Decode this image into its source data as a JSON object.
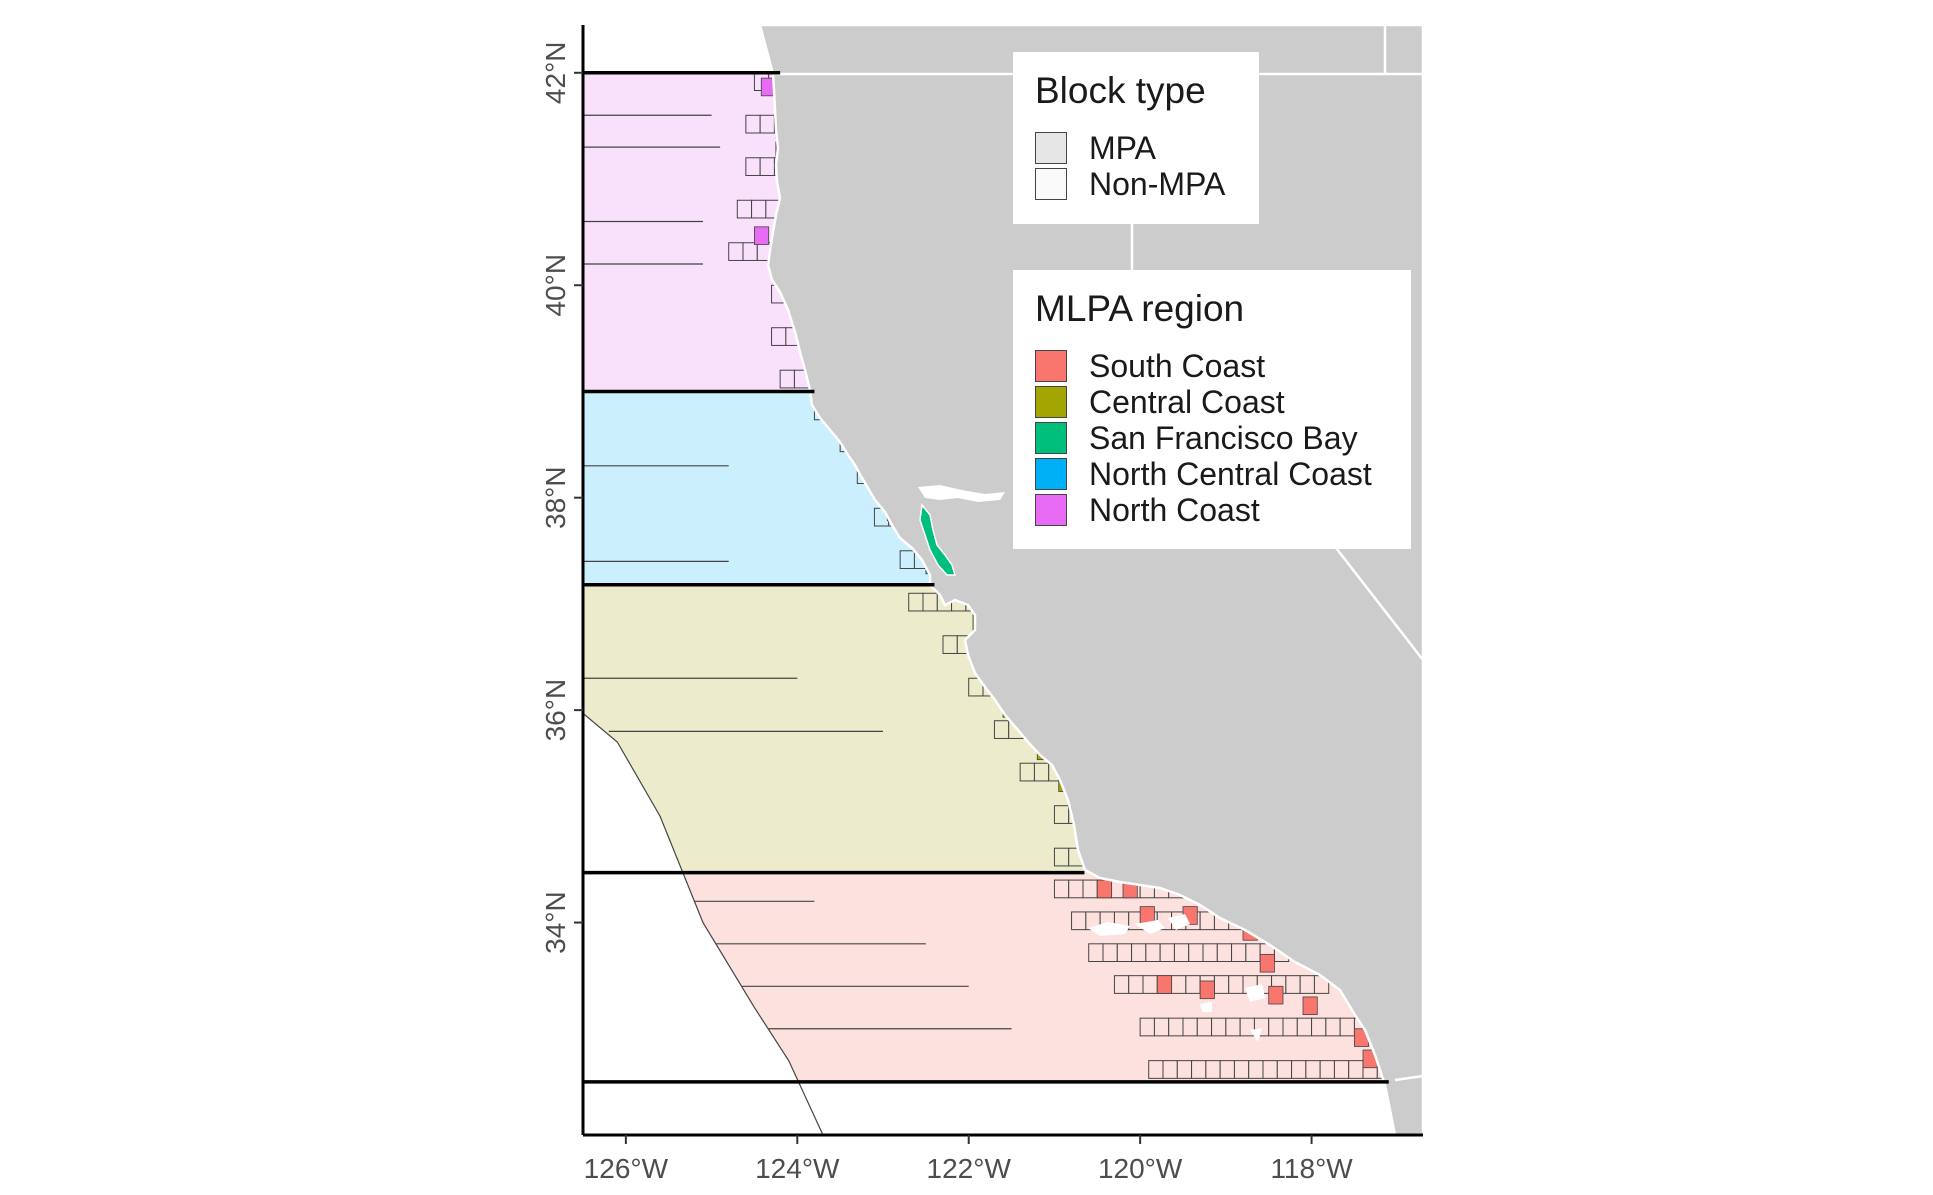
{
  "map": {
    "lon_range": [
      -126.5,
      -116.7
    ],
    "lat_range": [
      32.0,
      42.45
    ],
    "x_ticks": [
      {
        "lon": -126,
        "label": "126°W"
      },
      {
        "lon": -124,
        "label": "124°W"
      },
      {
        "lon": -122,
        "label": "122°W"
      },
      {
        "lon": -120,
        "label": "120°W"
      },
      {
        "lon": -118,
        "label": "118°W"
      }
    ],
    "y_ticks": [
      {
        "lat": 34,
        "label": "34°N"
      },
      {
        "lat": 36,
        "label": "36°N"
      },
      {
        "lat": 38,
        "label": "38°N"
      },
      {
        "lat": 40,
        "label": "40°N"
      },
      {
        "lat": 42,
        "label": "42°N"
      }
    ],
    "region_boundaries_lat": [
      42.0,
      39.0,
      37.18,
      34.47,
      32.5
    ],
    "colors": {
      "land": "#cccccc",
      "land_border": "#ffffff",
      "block_outline": "#444444",
      "region_boundary": "#000000"
    }
  },
  "regions": [
    {
      "name": "South Coast",
      "color": "#F8766D",
      "light": "#FDE1DF",
      "lat_range": [
        32.5,
        34.47
      ]
    },
    {
      "name": "Central Coast",
      "color": "#A3A500",
      "light": "#ECECCC",
      "lat_range": [
        34.47,
        37.18
      ]
    },
    {
      "name": "San Francisco Bay",
      "color": "#00BF7D",
      "light": "#CCF2E5",
      "lat_range": [
        37.45,
        38.2
      ]
    },
    {
      "name": "North Central Coast",
      "color": "#00B0F6",
      "light": "#CCEFFD",
      "lat_range": [
        37.18,
        39.0
      ]
    },
    {
      "name": "North Coast",
      "color": "#E76BF3",
      "light": "#F9E1FC",
      "lat_range": [
        39.0,
        42.0
      ]
    }
  ],
  "legend_block_type": {
    "title": "Block type",
    "items": [
      {
        "label": "MPA",
        "fill": "#e6e6e6"
      },
      {
        "label": "Non-MPA",
        "fill": "#fafafa"
      }
    ]
  },
  "legend_region": {
    "title": "MLPA region",
    "items": [
      {
        "label": "South Coast",
        "color": "#F8766D"
      },
      {
        "label": "Central Coast",
        "color": "#A3A500"
      },
      {
        "label": "San Francisco Bay",
        "color": "#00BF7D"
      },
      {
        "label": "North Central Coast",
        "color": "#00B0F6"
      },
      {
        "label": "North Coast",
        "color": "#E76BF3"
      }
    ]
  }
}
